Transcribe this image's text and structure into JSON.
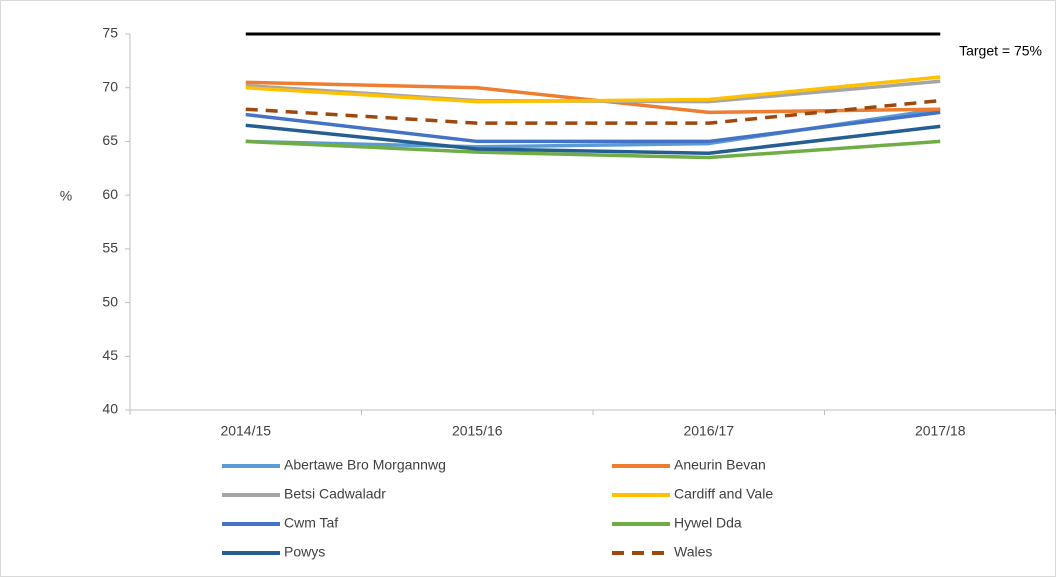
{
  "chart_data": {
    "type": "line",
    "y_label": "%",
    "categories": [
      "2014/15",
      "2015/16",
      "2016/17",
      "2017/18"
    ],
    "series": [
      {
        "name": "Abertawe Bro Morgannwg",
        "color": "#5b9bd5",
        "values": [
          65.0,
          64.5,
          64.8,
          68.0
        ]
      },
      {
        "name": "Aneurin Bevan",
        "color": "#ed7d31",
        "values": [
          70.5,
          70.0,
          67.7,
          68.0
        ]
      },
      {
        "name": "Betsi Cadwaladr",
        "color": "#a5a5a5",
        "values": [
          70.2,
          68.8,
          68.7,
          70.6
        ]
      },
      {
        "name": "Cardiff and Vale",
        "color": "#ffc000",
        "values": [
          70.0,
          68.7,
          68.9,
          71.0
        ]
      },
      {
        "name": "Cwm Taf",
        "color": "#4472c4",
        "values": [
          67.5,
          65.0,
          65.0,
          67.7
        ]
      },
      {
        "name": "Hywel Dda",
        "color": "#70ad47",
        "values": [
          65.0,
          64.0,
          63.5,
          65.0
        ]
      },
      {
        "name": "Powys",
        "color": "#255e91",
        "values": [
          66.5,
          64.3,
          63.9,
          66.4
        ]
      },
      {
        "name": "Wales",
        "color": "#9e480e",
        "dashed": true,
        "values": [
          68.0,
          66.7,
          66.7,
          68.8
        ]
      }
    ],
    "target": {
      "value": 75,
      "label": "Target = 75%",
      "color": "#000000"
    },
    "ylim": [
      40,
      75
    ],
    "yticks": [
      40,
      45,
      50,
      55,
      60,
      65,
      70,
      75
    ],
    "grid": false,
    "legend": "bottom"
  }
}
